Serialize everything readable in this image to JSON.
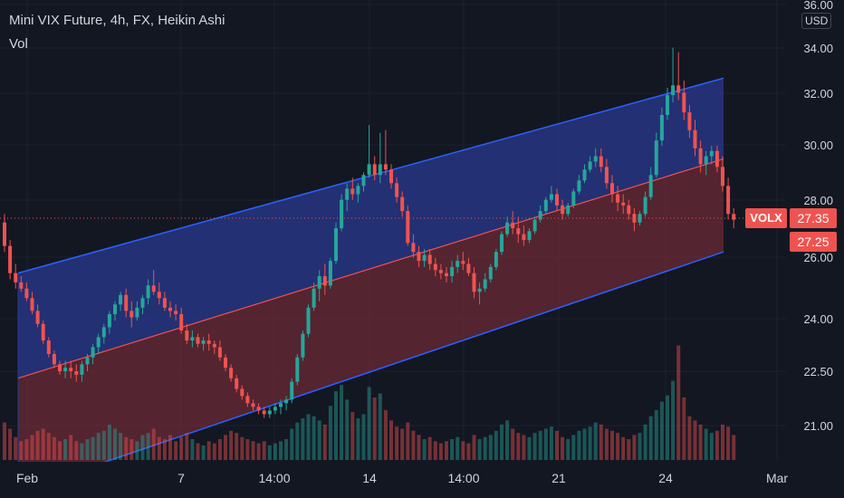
{
  "header": {
    "title": "Mini VIX Future, 4h, FX, Heikin Ashi",
    "volume_label": "Vol",
    "currency": "USD"
  },
  "price_axis": {
    "ticks": [
      "36.00",
      "34.00",
      "32.00",
      "30.00",
      "28.00",
      "26.00",
      "24.00",
      "22.50",
      "21.00"
    ]
  },
  "time_axis": {
    "ticks": [
      "Feb",
      "7",
      "14:00",
      "14",
      "14:00",
      "21",
      "24",
      "Mar"
    ]
  },
  "last_price": {
    "symbol": "VOLX",
    "close_label": "27.35",
    "second_label": "27.25"
  },
  "colors": {
    "background": "#131722",
    "up": "#26a69a",
    "down": "#ef5350",
    "channel_line": "#2962ff",
    "channel_upper_fill": "#2a3a8f",
    "channel_lower_fill": "#6b2a35",
    "midline": "#ef5350"
  },
  "chart_data": {
    "type": "candlestick",
    "title": "Mini VIX Future, 4h, FX, Heikin Ashi",
    "ylim": [
      20.0,
      36.0
    ],
    "y_scale": "log",
    "last_price": 27.35,
    "channel": {
      "upper": {
        "start": 25.5,
        "end": 32.7
      },
      "middle": {
        "start": 22.3,
        "end": 29.5
      },
      "lower": {
        "start": 19.3,
        "end": 26.2
      }
    },
    "candles": [
      [
        27.2,
        27.5,
        26.2,
        26.4,
        36
      ],
      [
        26.4,
        26.6,
        25.3,
        25.5,
        30
      ],
      [
        25.5,
        25.8,
        25.0,
        25.2,
        22
      ],
      [
        25.2,
        25.4,
        24.9,
        25.0,
        18
      ],
      [
        25.0,
        25.2,
        24.6,
        24.7,
        20
      ],
      [
        24.7,
        24.9,
        24.2,
        24.3,
        24
      ],
      [
        24.3,
        24.5,
        23.8,
        23.9,
        28
      ],
      [
        23.9,
        24.0,
        23.3,
        23.4,
        30
      ],
      [
        23.4,
        23.5,
        22.9,
        23.0,
        26
      ],
      [
        23.0,
        23.1,
        22.6,
        22.7,
        22
      ],
      [
        22.7,
        22.8,
        22.4,
        22.5,
        18
      ],
      [
        22.5,
        22.8,
        22.3,
        22.6,
        20
      ],
      [
        22.6,
        22.8,
        22.3,
        22.5,
        24
      ],
      [
        22.5,
        22.7,
        22.2,
        22.4,
        18
      ],
      [
        22.4,
        22.8,
        22.2,
        22.7,
        16
      ],
      [
        22.7,
        23.0,
        22.5,
        22.9,
        20
      ],
      [
        22.9,
        23.3,
        22.7,
        23.2,
        22
      ],
      [
        23.2,
        23.6,
        23.0,
        23.5,
        26
      ],
      [
        23.5,
        23.9,
        23.3,
        23.8,
        28
      ],
      [
        23.8,
        24.3,
        23.6,
        24.2,
        34
      ],
      [
        24.2,
        24.6,
        24.0,
        24.5,
        30
      ],
      [
        24.5,
        24.9,
        24.3,
        24.8,
        26
      ],
      [
        24.8,
        25.0,
        24.1,
        24.3,
        22
      ],
      [
        24.3,
        24.6,
        23.8,
        24.1,
        20
      ],
      [
        24.1,
        24.6,
        24.0,
        24.4,
        18
      ],
      [
        24.4,
        24.8,
        24.2,
        24.7,
        24
      ],
      [
        24.7,
        25.3,
        24.5,
        25.1,
        26
      ],
      [
        25.1,
        25.6,
        24.8,
        24.9,
        30
      ],
      [
        24.9,
        25.2,
        24.5,
        24.7,
        22
      ],
      [
        24.7,
        24.9,
        24.3,
        24.4,
        20
      ],
      [
        24.4,
        24.6,
        24.1,
        24.3,
        24
      ],
      [
        24.3,
        24.5,
        24.0,
        24.2,
        18
      ],
      [
        24.2,
        24.4,
        23.6,
        23.7,
        22
      ],
      [
        23.7,
        23.9,
        23.3,
        23.4,
        26
      ],
      [
        23.4,
        23.7,
        23.2,
        23.5,
        20
      ],
      [
        23.5,
        23.6,
        23.2,
        23.3,
        16
      ],
      [
        23.3,
        23.5,
        23.1,
        23.4,
        14
      ],
      [
        23.4,
        23.6,
        23.1,
        23.3,
        18
      ],
      [
        23.3,
        23.4,
        23.0,
        23.2,
        16
      ],
      [
        23.2,
        23.4,
        22.8,
        22.9,
        20
      ],
      [
        22.9,
        23.0,
        22.5,
        22.6,
        24
      ],
      [
        22.6,
        22.7,
        22.2,
        22.3,
        28
      ],
      [
        22.3,
        22.4,
        21.9,
        22.0,
        26
      ],
      [
        22.0,
        22.1,
        21.7,
        21.8,
        22
      ],
      [
        21.8,
        21.9,
        21.5,
        21.6,
        20
      ],
      [
        21.6,
        21.7,
        21.4,
        21.5,
        18
      ],
      [
        21.5,
        21.6,
        21.3,
        21.4,
        16
      ],
      [
        21.4,
        21.5,
        21.2,
        21.3,
        18
      ],
      [
        21.3,
        21.5,
        21.2,
        21.4,
        14
      ],
      [
        21.4,
        21.6,
        21.3,
        21.5,
        16
      ],
      [
        21.5,
        21.7,
        21.3,
        21.6,
        18
      ],
      [
        21.6,
        21.8,
        21.4,
        21.7,
        20
      ],
      [
        21.7,
        22.3,
        21.6,
        22.2,
        30
      ],
      [
        22.2,
        23.0,
        22.1,
        22.9,
        36
      ],
      [
        22.9,
        23.7,
        22.8,
        23.6,
        40
      ],
      [
        23.6,
        24.5,
        23.5,
        24.4,
        44
      ],
      [
        24.4,
        25.2,
        24.3,
        25.0,
        42
      ],
      [
        25.0,
        25.6,
        24.6,
        25.4,
        38
      ],
      [
        25.4,
        25.8,
        24.8,
        25.1,
        34
      ],
      [
        25.1,
        26.0,
        25.0,
        25.9,
        52
      ],
      [
        25.9,
        27.2,
        25.8,
        27.0,
        66
      ],
      [
        27.0,
        28.2,
        26.9,
        28.0,
        72
      ],
      [
        28.0,
        28.6,
        27.6,
        28.4,
        58
      ],
      [
        28.4,
        28.8,
        28.0,
        28.2,
        46
      ],
      [
        28.2,
        28.6,
        27.9,
        28.5,
        40
      ],
      [
        28.5,
        29.0,
        28.3,
        28.9,
        44
      ],
      [
        28.9,
        30.8,
        28.8,
        29.3,
        70
      ],
      [
        29.3,
        29.6,
        28.7,
        28.9,
        60
      ],
      [
        28.9,
        30.5,
        28.6,
        29.3,
        64
      ],
      [
        29.3,
        30.6,
        28.9,
        29.1,
        48
      ],
      [
        29.1,
        29.3,
        28.4,
        28.6,
        38
      ],
      [
        28.6,
        28.8,
        27.9,
        28.1,
        32
      ],
      [
        28.1,
        28.3,
        27.4,
        27.6,
        30
      ],
      [
        27.6,
        27.8,
        26.4,
        26.5,
        36
      ],
      [
        26.5,
        26.8,
        26.0,
        26.2,
        28
      ],
      [
        26.2,
        26.4,
        25.7,
        25.9,
        24
      ],
      [
        25.9,
        26.3,
        25.7,
        26.1,
        20
      ],
      [
        26.1,
        26.3,
        25.6,
        25.8,
        22
      ],
      [
        25.8,
        26.0,
        25.4,
        25.6,
        18
      ],
      [
        25.6,
        25.8,
        25.3,
        25.5,
        16
      ],
      [
        25.5,
        25.7,
        25.2,
        25.4,
        18
      ],
      [
        25.4,
        25.9,
        25.2,
        25.7,
        20
      ],
      [
        25.7,
        26.1,
        25.5,
        25.9,
        22
      ],
      [
        25.9,
        26.2,
        25.6,
        25.8,
        18
      ],
      [
        25.8,
        26.0,
        25.4,
        25.5,
        16
      ],
      [
        25.5,
        25.7,
        24.7,
        24.9,
        24
      ],
      [
        24.9,
        25.2,
        24.5,
        25.0,
        20
      ],
      [
        25.0,
        25.5,
        24.9,
        25.3,
        22
      ],
      [
        25.3,
        25.8,
        25.2,
        25.7,
        24
      ],
      [
        25.7,
        26.3,
        25.6,
        26.2,
        28
      ],
      [
        26.2,
        26.9,
        26.1,
        26.8,
        34
      ],
      [
        26.8,
        27.4,
        26.7,
        27.2,
        38
      ],
      [
        27.2,
        27.6,
        26.8,
        27.0,
        30
      ],
      [
        27.0,
        27.4,
        26.5,
        26.8,
        26
      ],
      [
        26.8,
        27.1,
        26.4,
        26.6,
        24
      ],
      [
        26.6,
        27.0,
        26.5,
        26.9,
        22
      ],
      [
        26.9,
        27.4,
        26.8,
        27.3,
        26
      ],
      [
        27.3,
        27.8,
        27.2,
        27.6,
        28
      ],
      [
        27.6,
        28.1,
        27.5,
        28.0,
        30
      ],
      [
        28.0,
        28.5,
        27.9,
        28.2,
        32
      ],
      [
        28.2,
        28.4,
        27.6,
        27.8,
        28
      ],
      [
        27.8,
        28.0,
        27.3,
        27.5,
        22
      ],
      [
        27.5,
        27.9,
        27.4,
        27.8,
        20
      ],
      [
        27.8,
        28.4,
        27.7,
        28.3,
        24
      ],
      [
        28.3,
        28.9,
        28.2,
        28.7,
        28
      ],
      [
        28.7,
        29.3,
        28.6,
        29.1,
        30
      ],
      [
        29.1,
        29.6,
        29.0,
        29.4,
        32
      ],
      [
        29.4,
        29.9,
        29.2,
        29.6,
        36
      ],
      [
        29.6,
        29.9,
        29.0,
        29.2,
        34
      ],
      [
        29.2,
        29.5,
        28.4,
        28.6,
        30
      ],
      [
        28.6,
        28.9,
        27.9,
        28.2,
        28
      ],
      [
        28.2,
        28.5,
        27.6,
        27.9,
        26
      ],
      [
        27.9,
        28.2,
        27.5,
        27.8,
        22
      ],
      [
        27.8,
        28.0,
        27.3,
        27.5,
        20
      ],
      [
        27.5,
        27.7,
        26.9,
        27.2,
        24
      ],
      [
        27.2,
        27.6,
        27.1,
        27.5,
        26
      ],
      [
        27.5,
        28.3,
        27.4,
        28.1,
        34
      ],
      [
        28.1,
        29.2,
        28.0,
        28.9,
        42
      ],
      [
        28.9,
        30.5,
        28.8,
        30.2,
        48
      ],
      [
        30.2,
        31.5,
        30.0,
        31.2,
        56
      ],
      [
        31.2,
        32.3,
        31.0,
        32.0,
        62
      ],
      [
        32.0,
        34.0,
        31.7,
        32.4,
        76
      ],
      [
        32.4,
        33.8,
        31.8,
        32.1,
        110
      ],
      [
        32.1,
        32.6,
        31.0,
        31.3,
        60
      ],
      [
        31.3,
        31.6,
        30.3,
        30.6,
        42
      ],
      [
        30.6,
        31.0,
        29.6,
        29.9,
        38
      ],
      [
        29.9,
        30.2,
        29.0,
        29.3,
        34
      ],
      [
        29.3,
        29.8,
        28.9,
        29.6,
        30
      ],
      [
        29.6,
        30.0,
        29.3,
        29.8,
        26
      ],
      [
        29.8,
        30.0,
        29.0,
        29.2,
        28
      ],
      [
        29.2,
        29.6,
        28.3,
        28.5,
        34
      ],
      [
        28.5,
        28.8,
        27.3,
        27.5,
        32
      ],
      [
        27.5,
        27.7,
        27.0,
        27.3,
        24
      ]
    ]
  }
}
